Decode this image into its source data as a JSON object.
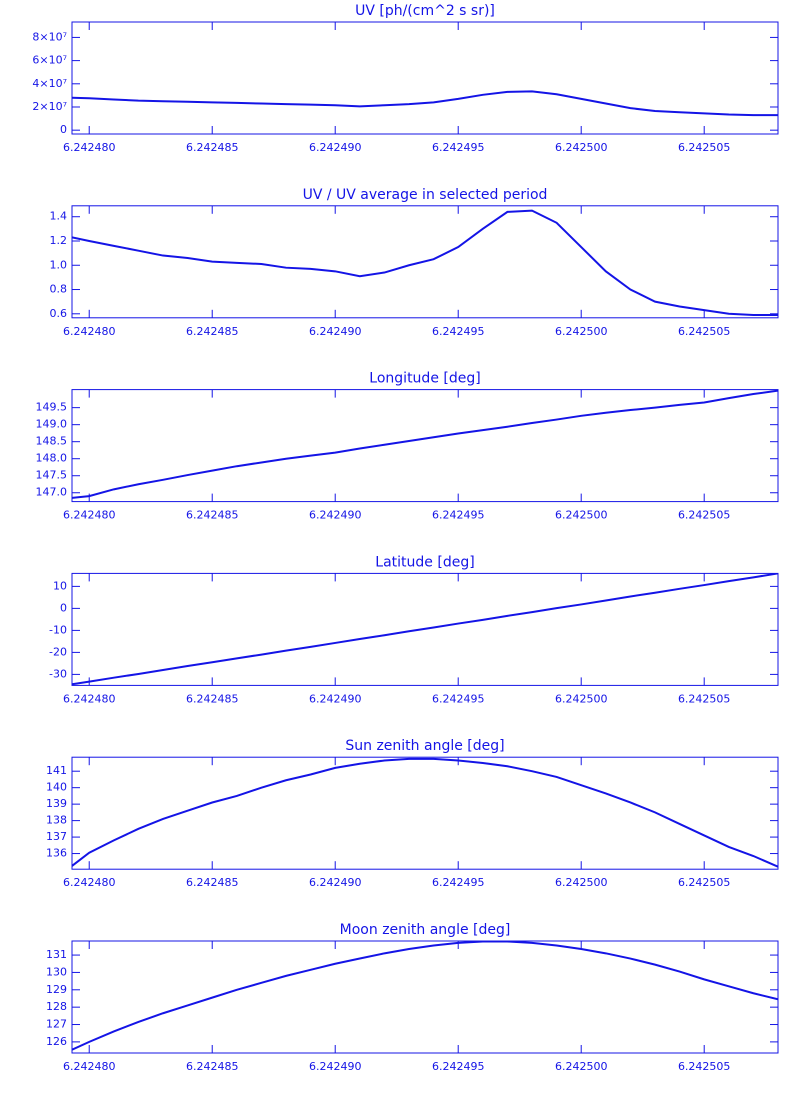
{
  "chart_data": [
    {
      "type": "line",
      "title": "UV [ph/(cm^2 s sr)]",
      "color": "#1414e6",
      "x": [
        6.2424793,
        6.24248,
        6.242481,
        6.242482,
        6.242483,
        6.242484,
        6.242485,
        6.242486,
        6.242487,
        6.242488,
        6.242489,
        6.24249,
        6.242491,
        6.242492,
        6.242493,
        6.242494,
        6.242495,
        6.242496,
        6.242497,
        6.242498,
        6.242499,
        6.2425,
        6.242501,
        6.242502,
        6.242503,
        6.242504,
        6.242505,
        6.242506,
        6.242507,
        6.242508
      ],
      "values": [
        28000000,
        27500000,
        26500000,
        25500000,
        25000000,
        24500000,
        24000000,
        23500000,
        23000000,
        22500000,
        22000000,
        21500000,
        20500000,
        21500000,
        22500000,
        24000000,
        27000000,
        30500000,
        33000000,
        33500000,
        31000000,
        27000000,
        23000000,
        19000000,
        16500000,
        15500000,
        14500000,
        13500000,
        13000000,
        13000000
      ],
      "xlim": [
        6.2424793,
        6.242508
      ],
      "xticks": [
        {
          "value": 6.24248,
          "label": "6.242480"
        },
        6.242485,
        {
          "value": 6.24249,
          "label": "6.242490"
        },
        6.242495,
        {
          "value": 6.2425,
          "label": "6.242500"
        },
        6.242505
      ],
      "ylim": [
        -3300000,
        93300000
      ],
      "yticks": [
        0,
        {
          "value": 20000000,
          "label": "2×10⁷"
        },
        {
          "value": 40000000,
          "label": "4×10⁷"
        },
        {
          "value": 60000000,
          "label": "6×10⁷"
        },
        {
          "value": 80000000,
          "label": "8×10⁷"
        }
      ]
    },
    {
      "type": "line",
      "title": "UV / UV average in selected period",
      "color": "#1414e6",
      "x": [
        6.2424793,
        6.24248,
        6.242481,
        6.242482,
        6.242483,
        6.242484,
        6.242485,
        6.242486,
        6.242487,
        6.242488,
        6.242489,
        6.24249,
        6.242491,
        6.242492,
        6.242493,
        6.242494,
        6.242495,
        6.242496,
        6.242497,
        6.242498,
        6.242499,
        6.2425,
        6.242501,
        6.242502,
        6.242503,
        6.242504,
        6.242505,
        6.242506,
        6.242507,
        6.242508
      ],
      "values": [
        1.23,
        1.2,
        1.16,
        1.12,
        1.08,
        1.06,
        1.03,
        1.02,
        1.01,
        0.98,
        0.97,
        0.95,
        0.91,
        0.94,
        1.0,
        1.05,
        1.15,
        1.3,
        1.44,
        1.45,
        1.35,
        1.15,
        0.95,
        0.8,
        0.7,
        0.66,
        0.63,
        0.6,
        0.59,
        0.59
      ],
      "xlim": [
        6.2424793,
        6.242508
      ],
      "xticks": [
        {
          "value": 6.24248,
          "label": "6.242480"
        },
        6.242485,
        {
          "value": 6.24249,
          "label": "6.242490"
        },
        6.242495,
        {
          "value": 6.2425,
          "label": "6.242500"
        },
        6.242505
      ],
      "ylim": [
        0.567,
        1.49
      ],
      "yticks": [
        0.6,
        0.8,
        {
          "value": 1,
          "label": "1.0"
        },
        1.2,
        1.4
      ]
    },
    {
      "type": "line",
      "title": "Longitude [deg]",
      "color": "#1414e6",
      "x": [
        6.2424793,
        6.24248,
        6.242481,
        6.242482,
        6.242483,
        6.242484,
        6.242485,
        6.242486,
        6.242487,
        6.242488,
        6.242489,
        6.24249,
        6.242491,
        6.242492,
        6.242493,
        6.242494,
        6.242495,
        6.242496,
        6.242497,
        6.242498,
        6.242499,
        6.2425,
        6.242501,
        6.242502,
        6.242503,
        6.242504,
        6.242505,
        6.242506,
        6.242507,
        6.242508
      ],
      "values": [
        146.85,
        146.9,
        147.1,
        147.25,
        147.38,
        147.52,
        147.65,
        147.78,
        147.89,
        148.0,
        148.09,
        148.18,
        148.3,
        148.41,
        148.52,
        148.63,
        148.74,
        148.84,
        148.94,
        149.05,
        149.15,
        149.26,
        149.35,
        149.43,
        149.5,
        149.58,
        149.65,
        149.78,
        149.9,
        150.0
      ],
      "xlim": [
        6.2424793,
        6.242508
      ],
      "xticks": [
        {
          "value": 6.24248,
          "label": "6.242480"
        },
        6.242485,
        {
          "value": 6.24249,
          "label": "6.242490"
        },
        6.242495,
        {
          "value": 6.2425,
          "label": "6.242500"
        },
        6.242505
      ],
      "ylim": [
        146.74,
        150.03
      ],
      "yticks": [
        {
          "value": 147,
          "label": "147.0"
        },
        147.5,
        {
          "value": 148,
          "label": "148.0"
        },
        148.5,
        {
          "value": 149,
          "label": "149.0"
        },
        149.5
      ]
    },
    {
      "type": "line",
      "title": "Latitude [deg]",
      "color": "#1414e6",
      "x": [
        6.2424793,
        6.24248,
        6.242481,
        6.242482,
        6.242483,
        6.242484,
        6.242485,
        6.242486,
        6.242487,
        6.242488,
        6.242489,
        6.24249,
        6.242491,
        6.242492,
        6.242493,
        6.242494,
        6.242495,
        6.242496,
        6.242497,
        6.242498,
        6.242499,
        6.2425,
        6.242501,
        6.242502,
        6.242503,
        6.242504,
        6.242505,
        6.242506,
        6.242507,
        6.242508
      ],
      "values": [
        -34.5,
        -33.3,
        -31.5,
        -29.8,
        -28.0,
        -26.2,
        -24.5,
        -22.7,
        -21.0,
        -19.2,
        -17.5,
        -15.7,
        -13.9,
        -12.2,
        -10.4,
        -8.7,
        -6.9,
        -5.2,
        -3.4,
        -1.7,
        0.1,
        1.8,
        3.6,
        5.4,
        7.1,
        8.9,
        10.6,
        12.4,
        14.1,
        15.9
      ],
      "xlim": [
        6.2424793,
        6.242508
      ],
      "xticks": [
        {
          "value": 6.24248,
          "label": "6.242480"
        },
        6.242485,
        {
          "value": 6.24249,
          "label": "6.242490"
        },
        6.242495,
        {
          "value": 6.2425,
          "label": "6.242500"
        },
        6.242505
      ],
      "ylim": [
        -35,
        15.9
      ],
      "yticks": [
        -30,
        -20,
        -10,
        0,
        10
      ]
    },
    {
      "type": "line",
      "title": "Sun zenith angle [deg]",
      "color": "#1414e6",
      "x": [
        6.2424793,
        6.24248,
        6.242481,
        6.242482,
        6.242483,
        6.242484,
        6.242485,
        6.242486,
        6.242487,
        6.242488,
        6.242489,
        6.24249,
        6.242491,
        6.242492,
        6.242493,
        6.242494,
        6.242495,
        6.242496,
        6.242497,
        6.242498,
        6.242499,
        6.2425,
        6.242501,
        6.242502,
        6.242503,
        6.242504,
        6.242505,
        6.242506,
        6.242507,
        6.242508
      ],
      "values": [
        135.25,
        136.05,
        136.8,
        137.5,
        138.1,
        138.6,
        139.1,
        139.5,
        140.0,
        140.45,
        140.8,
        141.2,
        141.45,
        141.65,
        141.75,
        141.75,
        141.65,
        141.5,
        141.3,
        141.0,
        140.65,
        140.15,
        139.65,
        139.1,
        138.5,
        137.8,
        137.1,
        136.4,
        135.85,
        135.2
      ],
      "xlim": [
        6.2424793,
        6.242508
      ],
      "xticks": [
        {
          "value": 6.24248,
          "label": "6.242480"
        },
        6.242485,
        {
          "value": 6.24249,
          "label": "6.242490"
        },
        6.242495,
        {
          "value": 6.2425,
          "label": "6.242500"
        },
        6.242505
      ],
      "ylim": [
        135.05,
        141.85
      ],
      "yticks": [
        136,
        137,
        138,
        139,
        140,
        141
      ]
    },
    {
      "type": "line",
      "title": "Moon zenith angle [deg]",
      "color": "#1414e6",
      "x": [
        6.2424793,
        6.24248,
        6.242481,
        6.242482,
        6.242483,
        6.242484,
        6.242485,
        6.242486,
        6.242487,
        6.242488,
        6.242489,
        6.24249,
        6.242491,
        6.242492,
        6.242493,
        6.242494,
        6.242495,
        6.242496,
        6.242497,
        6.242498,
        6.242499,
        6.2425,
        6.242501,
        6.242502,
        6.242503,
        6.242504,
        6.242505,
        6.242506,
        6.242507,
        6.242508
      ],
      "values": [
        125.55,
        126.0,
        126.6,
        127.15,
        127.65,
        128.1,
        128.55,
        129.0,
        129.4,
        129.8,
        130.15,
        130.5,
        130.8,
        131.1,
        131.35,
        131.55,
        131.7,
        131.78,
        131.78,
        131.7,
        131.55,
        131.35,
        131.1,
        130.8,
        130.45,
        130.05,
        129.6,
        129.2,
        128.8,
        128.45
      ],
      "xlim": [
        6.2424793,
        6.242508
      ],
      "xticks": [
        {
          "value": 6.24248,
          "label": "6.242480"
        },
        6.242485,
        {
          "value": 6.24249,
          "label": "6.242490"
        },
        6.242495,
        {
          "value": 6.2425,
          "label": "6.242500"
        },
        6.242505
      ],
      "ylim": [
        125.36,
        131.81
      ],
      "yticks": [
        126,
        127,
        128,
        129,
        130,
        131
      ]
    }
  ]
}
